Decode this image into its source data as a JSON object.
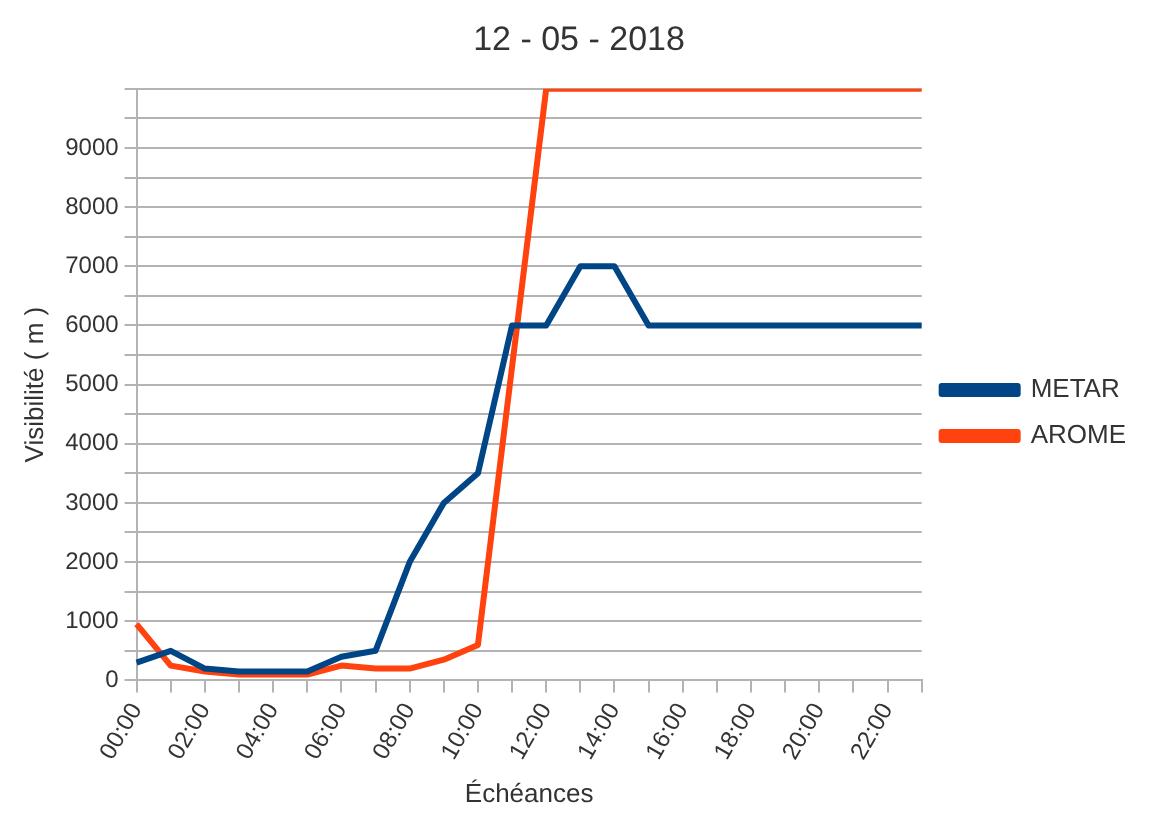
{
  "chart_data": {
    "type": "line",
    "title": "12 - 05 - 2018",
    "xlabel": "Échéances",
    "ylabel": "Visibilité ( m )",
    "categories": [
      "00:00",
      null,
      "02:00",
      null,
      "04:00",
      null,
      "06:00",
      null,
      "08:00",
      null,
      "10:00",
      null,
      "12:00",
      null,
      "14:00",
      null,
      "16:00",
      null,
      "18:00",
      null,
      "20:00",
      null,
      "22:00",
      null
    ],
    "series": [
      {
        "name": "METAR",
        "color": "#004586",
        "values": [
          300,
          500,
          200,
          150,
          150,
          150,
          400,
          500,
          2000,
          3000,
          3500,
          6000,
          6000,
          7000,
          7000,
          6000,
          6000,
          6000,
          6000,
          6000,
          6000,
          6000,
          6000,
          6000
        ]
      },
      {
        "name": "AROME",
        "color": "#ff420e",
        "values": [
          950,
          250,
          150,
          100,
          100,
          100,
          250,
          200,
          200,
          350,
          600,
          5300,
          10000,
          10000,
          10000,
          10000,
          10000,
          10000,
          10000,
          10000,
          10000,
          10000,
          10000,
          10000
        ]
      }
    ],
    "ylim": [
      0,
      10000
    ],
    "yticks": [
      0,
      {
        "value": 500,
        "label": null
      },
      1000,
      {
        "value": 1500,
        "label": null
      },
      2000,
      {
        "value": 2500,
        "label": null
      },
      3000,
      {
        "value": 3500,
        "label": null
      },
      4000,
      {
        "value": 4500,
        "label": null
      },
      5000,
      {
        "value": 5500,
        "label": null
      },
      6000,
      {
        "value": 6500,
        "label": null
      },
      7000,
      {
        "value": 7500,
        "label": null
      },
      8000,
      {
        "value": 8500,
        "label": null
      },
      9000,
      {
        "value": 9500,
        "label": null
      },
      {
        "value": 10000,
        "label": null
      }
    ],
    "grid": "y",
    "legend": "right",
    "marker": "none",
    "line_style": "solid"
  }
}
